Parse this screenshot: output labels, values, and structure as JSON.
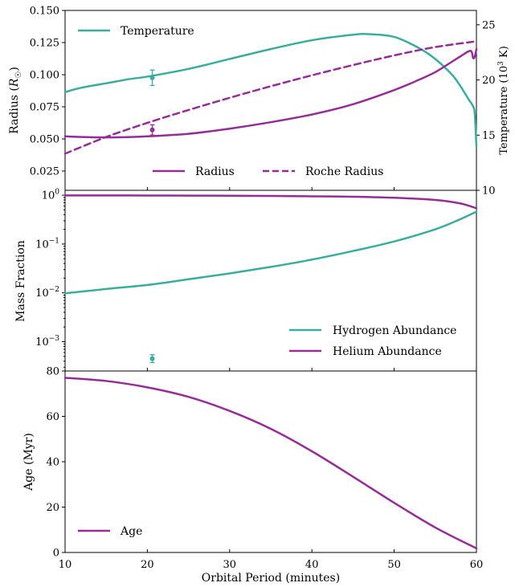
{
  "colors": {
    "teal": "#3aad9e",
    "purple": "#962d96",
    "axis": "#000000"
  },
  "chart_data": [
    {
      "type": "line",
      "panel": "top",
      "xlabel": "",
      "xlim": [
        10,
        60
      ],
      "ylabel": "Radius (R☉)",
      "ylabel_main": "Radius (",
      "ylabel_italic": "R",
      "ylabel_sub": "☉",
      "ylabel_close": ")",
      "ylim": [
        0.01,
        0.15
      ],
      "yticks": [
        0.025,
        0.05,
        0.075,
        0.1,
        0.125,
        0.15
      ],
      "ytick_labels": [
        "0.025",
        "0.050",
        "0.075",
        "0.100",
        "0.125",
        "0.150"
      ],
      "y2label": "Temperature (10³ K)",
      "y2label_main": "Temperature (10",
      "y2label_sup": "3",
      "y2label_close": " K)",
      "y2lim": [
        10,
        26.3
      ],
      "y2ticks": [
        10,
        15,
        20,
        25
      ],
      "y2tick_labels": [
        "10",
        "15",
        "20",
        "25"
      ],
      "legends": [
        {
          "position": "upper-left",
          "entries": [
            "Temperature"
          ]
        },
        {
          "position": "lower-center",
          "entries": [
            "Radius",
            "Roche Radius"
          ]
        }
      ],
      "series": [
        {
          "name": "Temperature",
          "axis": "right",
          "color": "teal",
          "style": "solid",
          "x": [
            10,
            12,
            15,
            18,
            20,
            25,
            30,
            35,
            40,
            45,
            47,
            50,
            53,
            55,
            57,
            58,
            59,
            59.6,
            59.8,
            60
          ],
          "y": [
            18.9,
            19.3,
            19.7,
            20.1,
            20.3,
            21.0,
            21.9,
            22.8,
            23.6,
            24.1,
            24.15,
            23.9,
            22.9,
            21.9,
            20.5,
            19.5,
            18.3,
            17.6,
            16.9,
            14.0
          ]
        },
        {
          "name": "Radius",
          "axis": "left",
          "color": "purple",
          "style": "solid",
          "x": [
            10,
            12,
            15,
            18,
            20,
            25,
            30,
            35,
            40,
            45,
            50,
            53,
            55,
            57,
            58,
            59,
            59.4,
            59.6,
            59.8,
            60
          ],
          "y": [
            0.052,
            0.0515,
            0.0512,
            0.0515,
            0.052,
            0.054,
            0.058,
            0.063,
            0.069,
            0.077,
            0.088,
            0.096,
            0.102,
            0.11,
            0.114,
            0.118,
            0.118,
            0.113,
            0.114,
            0.12
          ]
        },
        {
          "name": "Roche Radius",
          "axis": "left",
          "color": "purple",
          "style": "dashed",
          "x": [
            10,
            15,
            20,
            25,
            30,
            35,
            40,
            45,
            50,
            55,
            60
          ],
          "y": [
            0.0385,
            0.0515,
            0.0625,
            0.0725,
            0.082,
            0.091,
            0.0995,
            0.1075,
            0.115,
            0.1215,
            0.126
          ]
        }
      ],
      "points": [
        {
          "name": "temperature-datapoint",
          "axis": "right",
          "color": "teal",
          "x": 20.6,
          "y": 20.2,
          "err": 0.7
        },
        {
          "name": "radius-datapoint",
          "axis": "left",
          "color": "purple",
          "x": 20.6,
          "y": 0.057,
          "err": 0.004
        }
      ]
    },
    {
      "type": "line",
      "panel": "middle",
      "xlabel": "",
      "xlim": [
        10,
        60
      ],
      "ylabel": "Mass Fraction",
      "yscale": "log",
      "ylim_log10": [
        -3.6,
        0.1
      ],
      "ytick_exponents": [
        -3,
        -2,
        -1,
        0
      ],
      "ytick_base": "10",
      "legends": [
        {
          "position": "lower-right",
          "entries": [
            "Hydrogen Abundance",
            "Helium Abundance"
          ]
        }
      ],
      "series": [
        {
          "name": "Hydrogen Abundance",
          "color": "teal",
          "style": "solid",
          "x": [
            10,
            15,
            20,
            25,
            30,
            35,
            40,
            45,
            50,
            55,
            58,
            60
          ],
          "y": [
            0.0098,
            0.012,
            0.0145,
            0.019,
            0.025,
            0.034,
            0.048,
            0.072,
            0.113,
            0.2,
            0.32,
            0.46
          ]
        },
        {
          "name": "Helium Abundance",
          "color": "purple",
          "style": "solid",
          "x": [
            10,
            15,
            20,
            25,
            30,
            35,
            40,
            45,
            50,
            55,
            58,
            60
          ],
          "y": [
            0.99,
            0.988,
            0.985,
            0.98,
            0.975,
            0.966,
            0.95,
            0.93,
            0.885,
            0.8,
            0.68,
            0.54
          ]
        }
      ],
      "points": [
        {
          "name": "hydrogen-datapoint",
          "color": "teal",
          "x": 20.6,
          "y": 0.00045,
          "err_log10": 0.08
        }
      ]
    },
    {
      "type": "line",
      "panel": "bottom",
      "xlabel": "Orbital Period (minutes)",
      "xlim": [
        10,
        60
      ],
      "xticks": [
        10,
        20,
        30,
        40,
        50,
        60
      ],
      "xtick_labels": [
        "10",
        "20",
        "30",
        "40",
        "50",
        "60"
      ],
      "ylabel": "Age (Myr)",
      "ylim": [
        0,
        80
      ],
      "yticks": [
        0,
        20,
        40,
        60,
        80
      ],
      "ytick_labels": [
        "0",
        "20",
        "40",
        "60",
        "80"
      ],
      "legends": [
        {
          "position": "lower-left",
          "entries": [
            "Age"
          ]
        }
      ],
      "series": [
        {
          "name": "Age",
          "color": "purple",
          "style": "solid",
          "x": [
            10,
            15,
            20,
            25,
            30,
            35,
            40,
            45,
            50,
            55,
            60
          ],
          "y": [
            77.0,
            75.6,
            72.8,
            68.6,
            62.4,
            54.5,
            44.6,
            33.4,
            21.9,
            11.0,
            1.8
          ]
        }
      ]
    }
  ]
}
